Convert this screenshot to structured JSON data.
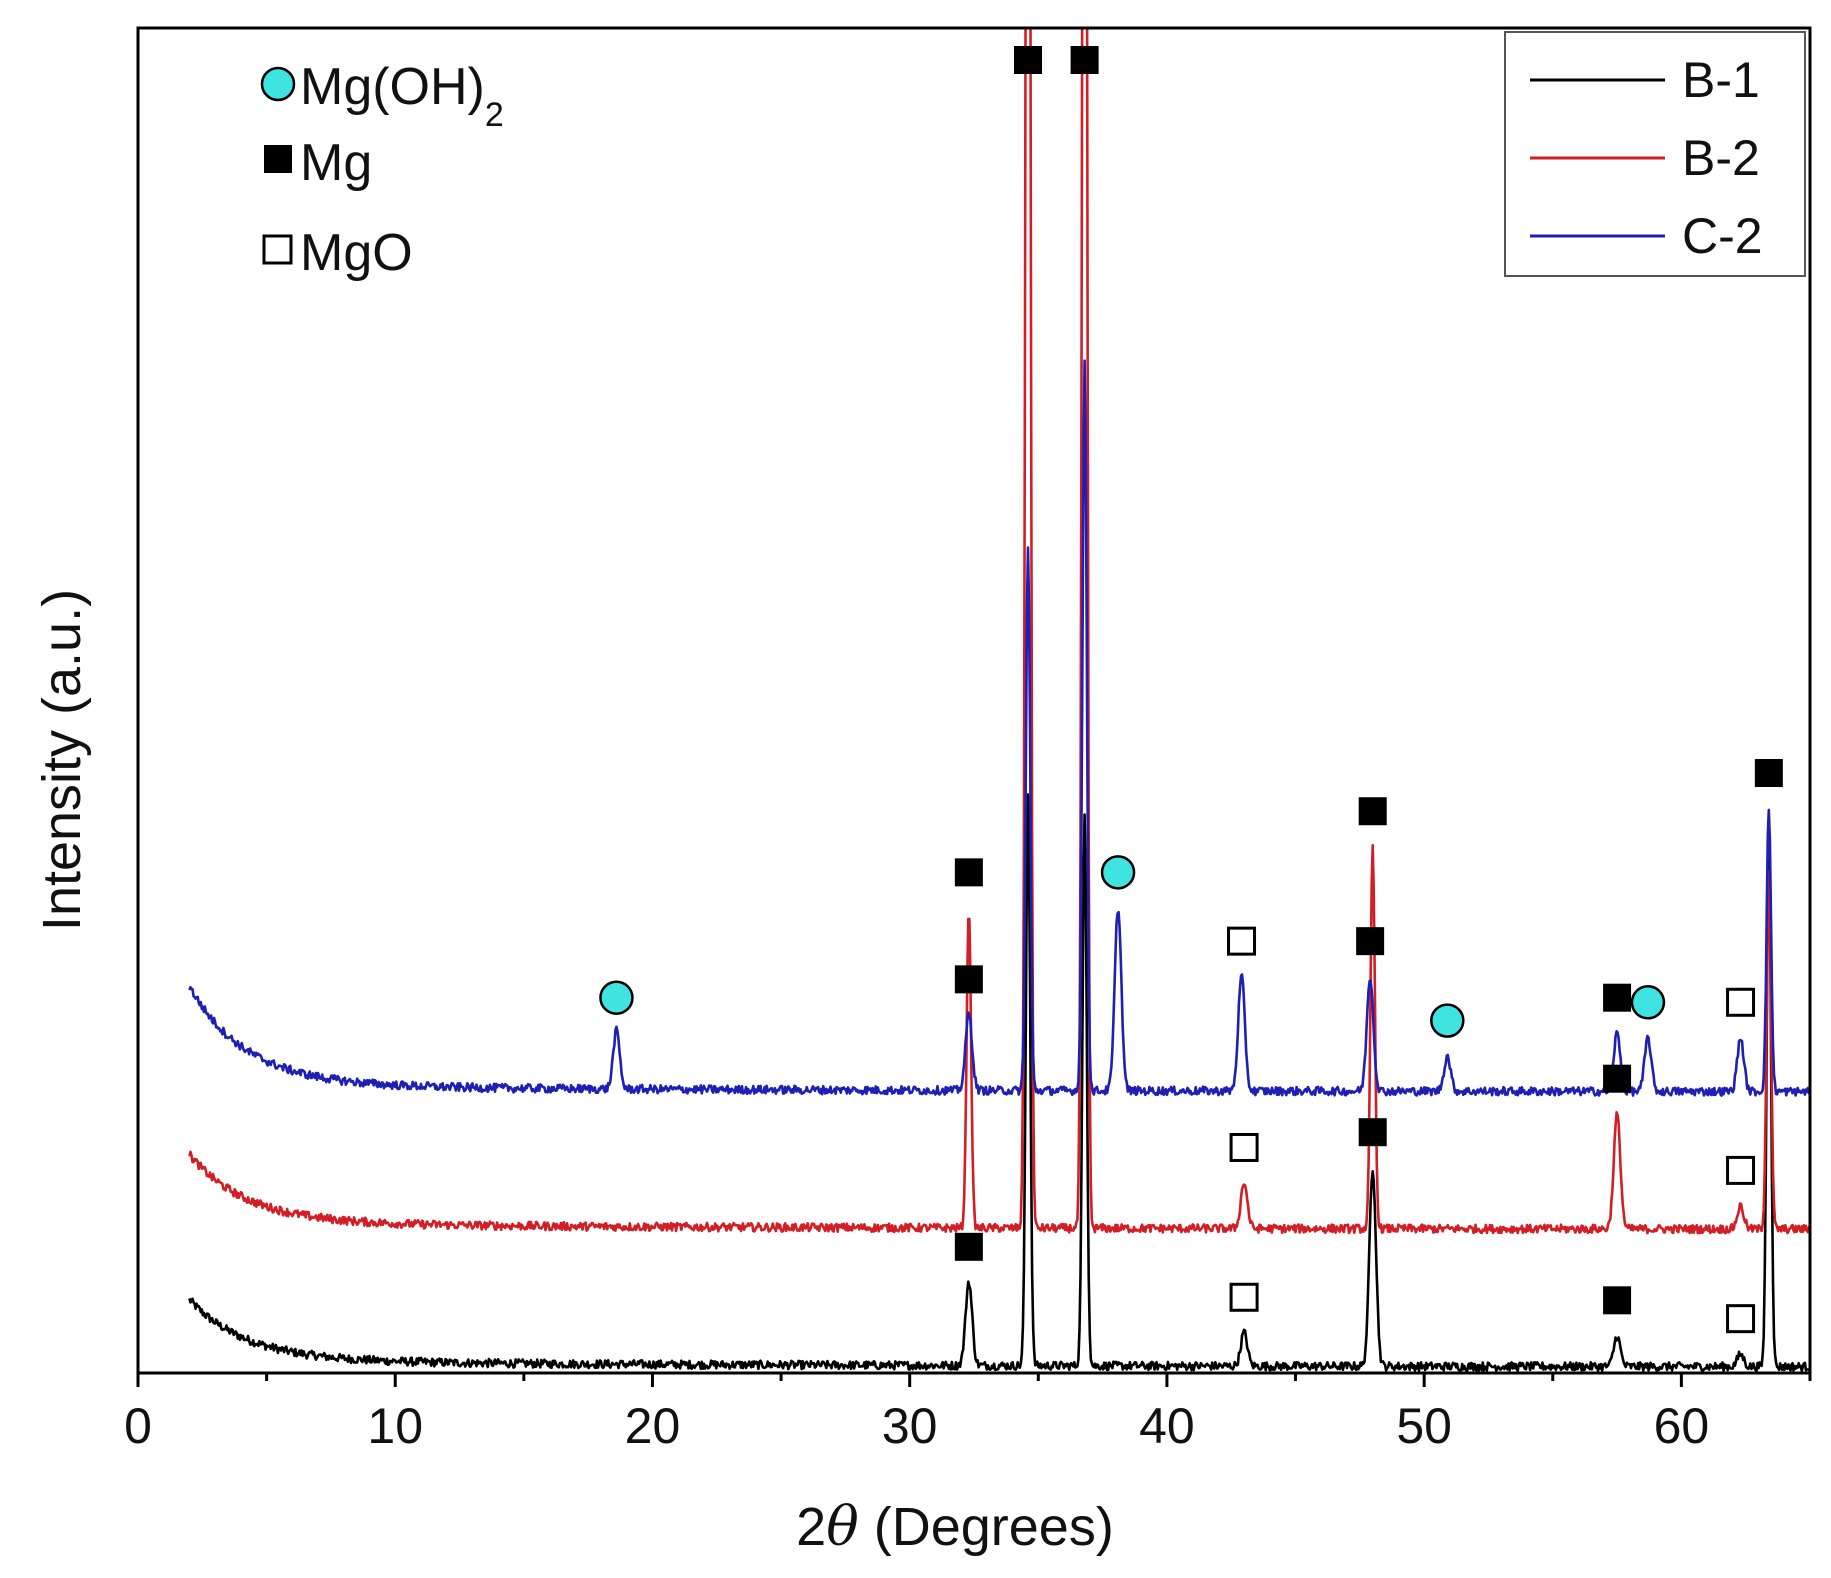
{
  "chart_data": {
    "type": "line",
    "xlabel_prefix": "2",
    "xlabel_symbol": "θ",
    "xlabel_suffix": " (Degrees)",
    "ylabel": "Intensity (a.u.)",
    "xlim": [
      0,
      65
    ],
    "x_ticks": [
      0,
      10,
      20,
      30,
      40,
      50,
      60
    ],
    "x_tick_labels": [
      "0",
      "10",
      "20",
      "30",
      "40",
      "50",
      "60"
    ],
    "legend_position": "top-right",
    "series": [
      {
        "name": "B-1",
        "color": "#000000",
        "baseline": 0.4,
        "start_rise": 4.0,
        "peaks": [
          [
            32.3,
            55
          ],
          [
            34.6,
            375
          ],
          [
            36.8,
            360
          ],
          [
            43.0,
            22
          ],
          [
            48.0,
            130
          ],
          [
            57.5,
            20
          ],
          [
            62.3,
            8
          ],
          [
            63.4,
            345
          ]
        ]
      },
      {
        "name": "B-2",
        "color": "#d21f26",
        "baseline": 9.4,
        "start_rise": 4.5,
        "peaks": [
          [
            32.3,
            210
          ],
          [
            34.6,
            1500
          ],
          [
            36.8,
            1500
          ],
          [
            43.0,
            30
          ],
          [
            48.0,
            250
          ],
          [
            57.5,
            75
          ],
          [
            62.3,
            15
          ],
          [
            63.4,
            235
          ]
        ]
      },
      {
        "name": "C-2",
        "color": "#1f1fb4",
        "baseline": 18.4,
        "start_rise": 6.5,
        "peaks": [
          [
            18.6,
            38
          ],
          [
            32.3,
            50
          ],
          [
            34.6,
            355
          ],
          [
            36.8,
            475
          ],
          [
            38.1,
            120
          ],
          [
            42.9,
            75
          ],
          [
            47.9,
            75
          ],
          [
            50.9,
            23
          ],
          [
            57.5,
            38
          ],
          [
            58.7,
            35
          ],
          [
            62.3,
            35
          ],
          [
            63.4,
            185
          ]
        ]
      }
    ],
    "legend": [
      "B-1",
      "B-2",
      "C-2"
    ],
    "phase_legend": [
      {
        "marker": "circle",
        "label": "Mg(OH)",
        "sub": "2"
      },
      {
        "marker": "filled-square",
        "label": "Mg",
        "sub": ""
      },
      {
        "marker": "open-square",
        "label": "MgO",
        "sub": ""
      }
    ],
    "annotations": [
      {
        "phase": "Mg(OH)2",
        "marker": "circle",
        "x": 18.6,
        "series": "C-2"
      },
      {
        "phase": "Mg",
        "marker": "filled-square",
        "x": 32.3,
        "series": "C-2"
      },
      {
        "phase": "Mg(OH)2",
        "marker": "circle",
        "x": 38.1,
        "series": "C-2"
      },
      {
        "phase": "MgO",
        "marker": "open-square",
        "x": 42.9,
        "series": "C-2"
      },
      {
        "phase": "Mg",
        "marker": "filled-square",
        "x": 47.9,
        "series": "C-2"
      },
      {
        "phase": "Mg(OH)2",
        "marker": "circle",
        "x": 50.9,
        "series": "C-2"
      },
      {
        "phase": "Mg",
        "marker": "filled-square",
        "x": 57.5,
        "series": "C-2"
      },
      {
        "phase": "Mg(OH)2",
        "marker": "circle",
        "x": 58.7,
        "series": "C-2"
      },
      {
        "phase": "MgO",
        "marker": "open-square",
        "x": 62.3,
        "series": "C-2"
      },
      {
        "phase": "Mg",
        "marker": "filled-square",
        "x": 63.4,
        "series": "C-2"
      },
      {
        "phase": "Mg",
        "marker": "filled-square",
        "x": 34.6,
        "series": "B-2"
      },
      {
        "phase": "Mg",
        "marker": "filled-square",
        "x": 36.8,
        "series": "B-2"
      },
      {
        "phase": "Mg",
        "marker": "filled-square",
        "x": 32.3,
        "series": "B-2"
      },
      {
        "phase": "MgO",
        "marker": "open-square",
        "x": 43.0,
        "series": "B-2"
      },
      {
        "phase": "Mg",
        "marker": "filled-square",
        "x": 48.0,
        "series": "B-2"
      },
      {
        "phase": "Mg",
        "marker": "filled-square",
        "x": 57.5,
        "series": "B-2"
      },
      {
        "phase": "MgO",
        "marker": "open-square",
        "x": 62.3,
        "series": "B-2"
      },
      {
        "phase": "Mg",
        "marker": "filled-square",
        "x": 32.3,
        "series": "B-1"
      },
      {
        "phase": "MgO",
        "marker": "open-square",
        "x": 43.0,
        "series": "B-1"
      },
      {
        "phase": "Mg",
        "marker": "filled-square",
        "x": 48.0,
        "series": "B-1"
      },
      {
        "phase": "Mg",
        "marker": "filled-square",
        "x": 57.5,
        "series": "B-1"
      },
      {
        "phase": "MgO",
        "marker": "open-square",
        "x": 62.3,
        "series": "B-1"
      }
    ]
  }
}
